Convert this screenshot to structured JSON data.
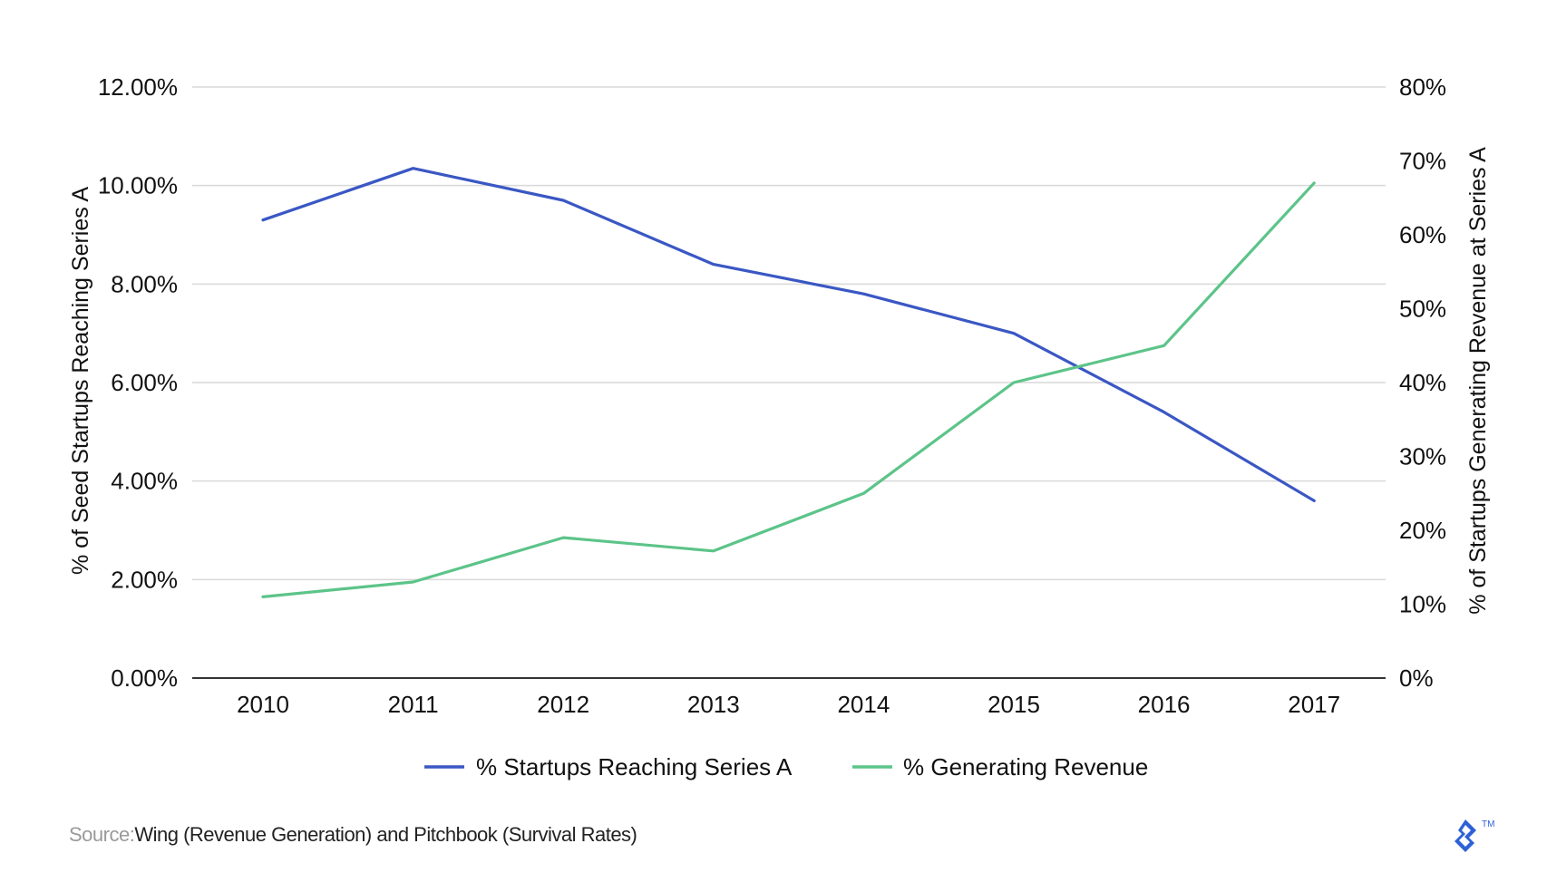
{
  "colors": {
    "series_a": "#3a57c4",
    "revenue": "#5cc489",
    "grid": "#d9d9d9",
    "axis": "#333333",
    "logo": "#2f61d6"
  },
  "source": {
    "label": "Source:",
    "text": "Wing (Revenue Generation) and Pitchbook (Survival Rates)"
  },
  "logo": {
    "icon": "toptal-logo-icon",
    "trademark": "TM"
  },
  "chart_data": {
    "type": "line",
    "title": "",
    "categories": [
      "2010",
      "2011",
      "2012",
      "2013",
      "2014",
      "2015",
      "2016",
      "2017"
    ],
    "y_left": {
      "label": "% of Seed Startups Reaching Series A",
      "ylim": [
        0,
        12
      ],
      "ticks": [
        "0.00%",
        "2.00%",
        "4.00%",
        "6.00%",
        "8.00%",
        "10.00%",
        "12.00%"
      ]
    },
    "y_right": {
      "label": "% of Startups Generating Revenue at Series A",
      "ylim": [
        0,
        80
      ],
      "ticks": [
        "0%",
        "10%",
        "20%",
        "30%",
        "40%",
        "50%",
        "60%",
        "70%",
        "80%"
      ]
    },
    "series": [
      {
        "name": "% Startups Reaching Series A",
        "axis": "left",
        "values": [
          9.3,
          10.35,
          9.7,
          8.4,
          7.8,
          7.0,
          5.4,
          3.6
        ]
      },
      {
        "name": "% Generating Revenue",
        "axis": "right",
        "values": [
          11,
          13,
          19,
          17.2,
          25,
          40,
          45,
          67
        ]
      }
    ],
    "grid": true,
    "legend_position": "bottom-center"
  }
}
